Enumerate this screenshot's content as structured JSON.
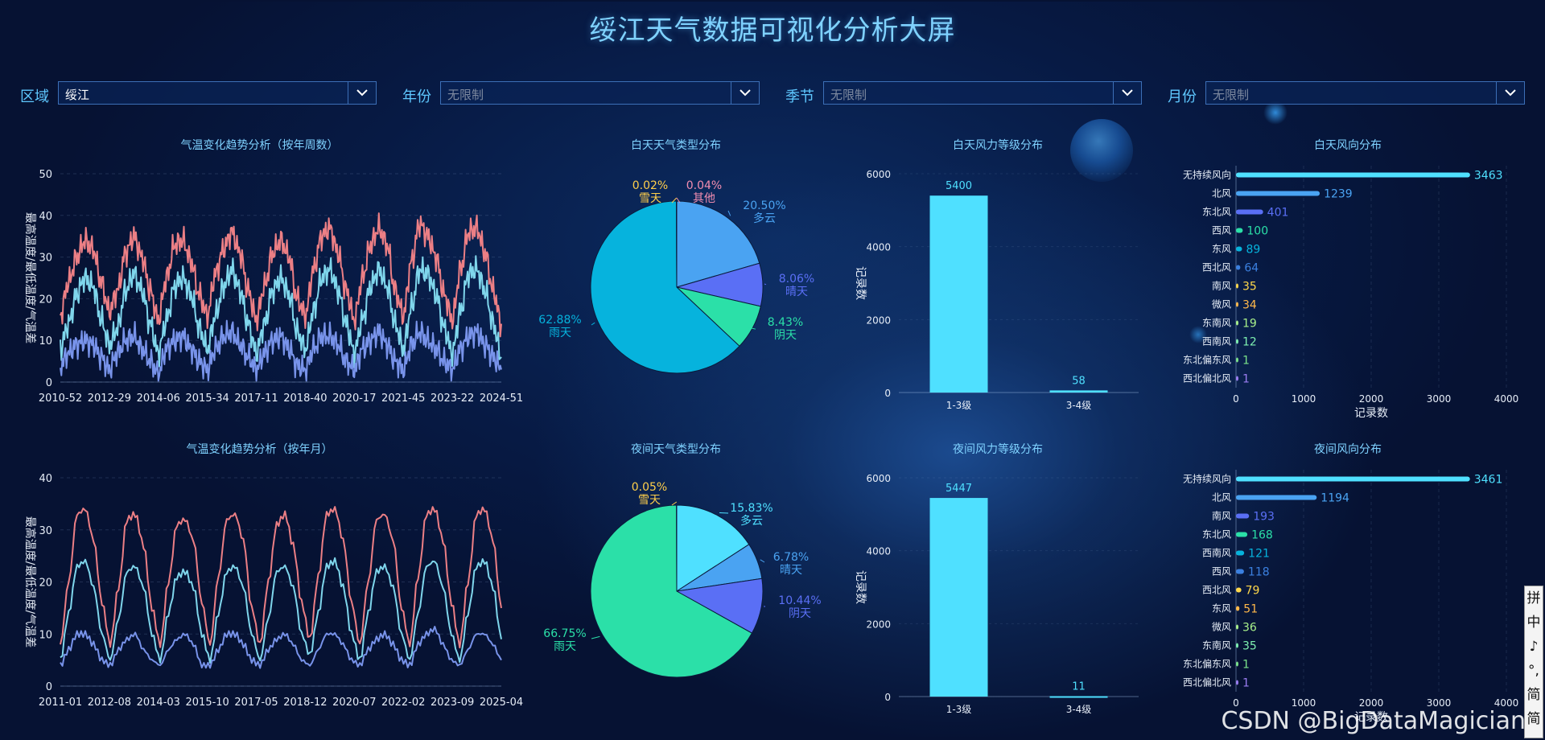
{
  "title": "绥江天气数据可视化分析大屏",
  "filters": [
    {
      "label": "区域",
      "value": "绥江",
      "placeholder": ""
    },
    {
      "label": "年份",
      "value": "",
      "placeholder": "无限制"
    },
    {
      "label": "季节",
      "value": "",
      "placeholder": "无限制"
    },
    {
      "label": "月份",
      "value": "",
      "placeholder": "无限制"
    }
  ],
  "colors": {
    "high": "#ec7f85",
    "mid": "#7fd6ec",
    "low": "#7893ea",
    "bar": "#4fe0ff",
    "accent": "#7fd2ff"
  },
  "watermark": "CSDN @BigDataMagician",
  "ime_chars": [
    "拼",
    "中",
    "♪",
    "°,",
    "简",
    "简"
  ],
  "chart_data": [
    {
      "id": "temp_week",
      "type": "line",
      "title": "气温变化趋势分析（按年周数）",
      "ylabel": "最高温度/最低温度/气温差",
      "xticks": [
        "2010-52",
        "2012-29",
        "2014-06",
        "2015-34",
        "2017-11",
        "2018-40",
        "2020-17",
        "2021-45",
        "2023-22",
        "2024-51"
      ],
      "ylim": [
        0,
        50
      ],
      "yticks": [
        0,
        10,
        20,
        30,
        40,
        50
      ],
      "grid": true,
      "series_style": "seasonal",
      "series": [
        {
          "key": "high",
          "values": [
            16,
            24,
            30,
            34,
            32,
            24,
            17,
            22,
            31,
            35,
            30,
            22,
            15,
            25,
            33,
            34,
            29,
            21,
            16,
            26,
            32,
            36,
            31,
            22,
            15,
            23,
            31,
            34,
            30,
            20,
            16,
            27,
            35,
            37,
            31,
            22,
            15,
            25,
            33,
            37,
            33,
            22,
            16,
            29,
            38,
            35,
            30,
            21,
            15,
            27,
            36,
            37,
            31,
            22,
            14
          ]
        },
        {
          "key": "mid",
          "values": [
            8,
            14,
            21,
            25,
            23,
            15,
            9,
            13,
            22,
            26,
            22,
            14,
            7,
            15,
            23,
            25,
            21,
            13,
            8,
            16,
            23,
            27,
            22,
            14,
            7,
            14,
            22,
            25,
            21,
            12,
            8,
            17,
            25,
            27,
            22,
            14,
            7,
            15,
            23,
            27,
            23,
            14,
            8,
            18,
            27,
            26,
            21,
            13,
            7,
            17,
            26,
            27,
            22,
            14,
            6
          ]
        },
        {
          "key": "low",
          "values": [
            4,
            7,
            9,
            10,
            9,
            6,
            3,
            7,
            10,
            11,
            8,
            5,
            2,
            8,
            10,
            11,
            8,
            5,
            3,
            8,
            11,
            12,
            9,
            6,
            3,
            7,
            10,
            11,
            8,
            4,
            3,
            8,
            11,
            11,
            9,
            5,
            3,
            8,
            10,
            12,
            9,
            5,
            3,
            9,
            12,
            10,
            8,
            5,
            3,
            8,
            11,
            12,
            9,
            6,
            3
          ]
        }
      ]
    },
    {
      "id": "temp_month",
      "type": "line",
      "title": "气温变化趋势分析（按年月）",
      "ylabel": "最高温度/最低温度/气温差",
      "xticks": [
        "2011-01",
        "2012-08",
        "2014-03",
        "2015-10",
        "2017-05",
        "2018-12",
        "2020-07",
        "2022-02",
        "2023-09",
        "2025-04"
      ],
      "ylim": [
        0,
        40
      ],
      "yticks": [
        0,
        10,
        20,
        30,
        40
      ],
      "grid": true,
      "series_style": "seasonal",
      "series": [
        {
          "key": "high",
          "values": [
            8,
            20,
            33,
            34,
            28,
            16,
            8,
            19,
            32,
            33,
            27,
            15,
            8,
            20,
            31,
            32,
            28,
            16,
            8,
            21,
            32,
            33,
            28,
            15,
            8,
            20,
            31,
            33,
            27,
            16,
            9,
            21,
            33,
            34,
            28,
            16,
            8,
            20,
            32,
            33,
            28,
            15,
            8,
            21,
            33,
            34,
            28,
            16,
            8,
            20,
            33,
            34,
            28,
            15
          ]
        },
        {
          "key": "mid",
          "values": [
            5,
            14,
            23,
            24,
            19,
            10,
            5,
            13,
            22,
            23,
            19,
            10,
            5,
            14,
            21,
            22,
            19,
            10,
            5,
            14,
            22,
            23,
            19,
            10,
            5,
            13,
            22,
            23,
            19,
            10,
            6,
            14,
            23,
            24,
            19,
            10,
            5,
            14,
            22,
            23,
            19,
            10,
            5,
            14,
            23,
            24,
            19,
            10,
            5,
            14,
            23,
            24,
            19,
            9
          ]
        },
        {
          "key": "low",
          "values": [
            4,
            7,
            10,
            10,
            8,
            5,
            4,
            7,
            9,
            10,
            7,
            5,
            4,
            7,
            9,
            10,
            8,
            4,
            4,
            7,
            10,
            10,
            8,
            5,
            4,
            7,
            9,
            10,
            8,
            5,
            4,
            7,
            10,
            10,
            8,
            5,
            4,
            7,
            9,
            10,
            8,
            5,
            4,
            8,
            10,
            11,
            8,
            5,
            4,
            7,
            10,
            10,
            8,
            5
          ]
        }
      ]
    },
    {
      "id": "day_weather",
      "type": "pie",
      "title": "白天天气类型分布",
      "slices": [
        {
          "name": "多云",
          "value": 20.5,
          "label": "20.50%",
          "color": "#4aa3f2"
        },
        {
          "name": "晴天",
          "value": 8.06,
          "label": "8.06%",
          "color": "#5a6ff5"
        },
        {
          "name": "阴天",
          "value": 8.43,
          "label": "8.43%",
          "color": "#2be0a8"
        },
        {
          "name": "雨天",
          "value": 62.88,
          "label": "62.88%",
          "color": "#06b3dd"
        },
        {
          "name": "雪天",
          "value": 0.02,
          "label": "0.02%",
          "color": "#ffcf4a"
        },
        {
          "name": "其他",
          "value": 0.04,
          "label": "0.04%",
          "color": "#f28db0"
        }
      ]
    },
    {
      "id": "night_weather",
      "type": "pie",
      "title": "夜间天气类型分布",
      "slices": [
        {
          "name": "多云",
          "value": 15.83,
          "label": "15.83%",
          "color": "#4fe0ff"
        },
        {
          "name": "晴天",
          "value": 6.78,
          "label": "6.78%",
          "color": "#4aa3f2"
        },
        {
          "name": "阴天",
          "value": 10.44,
          "label": "10.44%",
          "color": "#5a6ff5"
        },
        {
          "name": "雨天",
          "value": 66.75,
          "label": "66.75%",
          "color": "#2be0a8"
        },
        {
          "name": "雪天",
          "value": 0.05,
          "label": "0.05%",
          "color": "#ffcf4a"
        }
      ]
    },
    {
      "id": "day_wind_level",
      "type": "bar",
      "title": "白天风力等级分布",
      "ylabel": "记录数",
      "categories": [
        "1-3级",
        "3-4级"
      ],
      "values": [
        5400,
        58
      ],
      "ylim": [
        0,
        6000
      ],
      "yticks": [
        0,
        2000,
        4000,
        6000
      ]
    },
    {
      "id": "night_wind_level",
      "type": "bar",
      "title": "夜间风力等级分布",
      "ylabel": "记录数",
      "categories": [
        "1-3级",
        "3-4级"
      ],
      "values": [
        5447,
        11
      ],
      "ylim": [
        0,
        6000
      ],
      "yticks": [
        0,
        2000,
        4000,
        6000
      ]
    },
    {
      "id": "day_wind_dir",
      "type": "bar",
      "orientation": "horizontal",
      "title": "白天风向分布",
      "xlabel": "记录数",
      "categories": [
        "无持续风向",
        "北风",
        "东北风",
        "西风",
        "东风",
        "西北风",
        "南风",
        "微风",
        "东南风",
        "西南风",
        "东北偏东风",
        "西北偏北风"
      ],
      "values": [
        3463,
        1239,
        401,
        100,
        89,
        64,
        35,
        34,
        19,
        12,
        1,
        1
      ],
      "colors": [
        "#4fe0ff",
        "#4aa3f2",
        "#5a6ff5",
        "#2be0a8",
        "#06b3dd",
        "#3b80e0",
        "#ffd84a",
        "#ffb84a",
        "#a8f08a",
        "#7ef0b0",
        "#7be38a",
        "#9b7df2"
      ],
      "xlim": [
        0,
        4000
      ],
      "xticks": [
        0,
        1000,
        2000,
        3000,
        4000
      ]
    },
    {
      "id": "night_wind_dir",
      "type": "bar",
      "orientation": "horizontal",
      "title": "夜间风向分布",
      "xlabel": "记录数",
      "categories": [
        "无持续风向",
        "北风",
        "南风",
        "东北风",
        "西南风",
        "西风",
        "西北风",
        "东风",
        "微风",
        "东南风",
        "东北偏东风",
        "西北偏北风"
      ],
      "values": [
        3461,
        1194,
        193,
        168,
        121,
        118,
        79,
        51,
        36,
        35,
        1,
        1
      ],
      "colors": [
        "#4fe0ff",
        "#4aa3f2",
        "#5a6ff5",
        "#2be0a8",
        "#06b3dd",
        "#3b80e0",
        "#ffd84a",
        "#ffb84a",
        "#a8f08a",
        "#7ef0b0",
        "#7be38a",
        "#9b7df2"
      ],
      "xlim": [
        0,
        4000
      ],
      "xticks": [
        0,
        1000,
        2000,
        3000,
        4000
      ]
    }
  ]
}
